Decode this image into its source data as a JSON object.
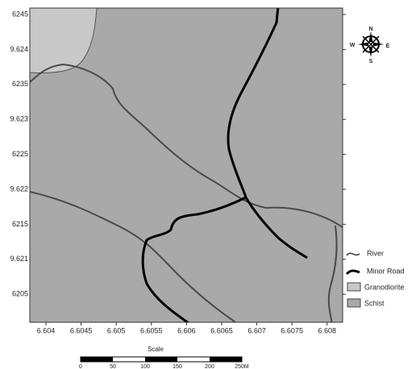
{
  "map": {
    "y_labels": [
      "6245",
      "9.624",
      "6235",
      "9.623",
      "6225",
      "9.622",
      "6215",
      "9.621",
      "6205"
    ],
    "x_labels": [
      "6.604",
      "6.6045",
      "6.605",
      "6.6055",
      "6.606",
      "6.6065",
      "6.607",
      "6.6075",
      "6.608"
    ],
    "compass": {
      "n": "N",
      "s": "S",
      "e": "E",
      "w": "W"
    },
    "legend": [
      {
        "label": "River"
      },
      {
        "label": "Minor Road"
      },
      {
        "label": "Granodiorite"
      },
      {
        "label": "Schist"
      }
    ],
    "scale": {
      "title": "Scale",
      "labels": [
        "0",
        "50",
        "100",
        "150",
        "200",
        "250M"
      ]
    }
  }
}
